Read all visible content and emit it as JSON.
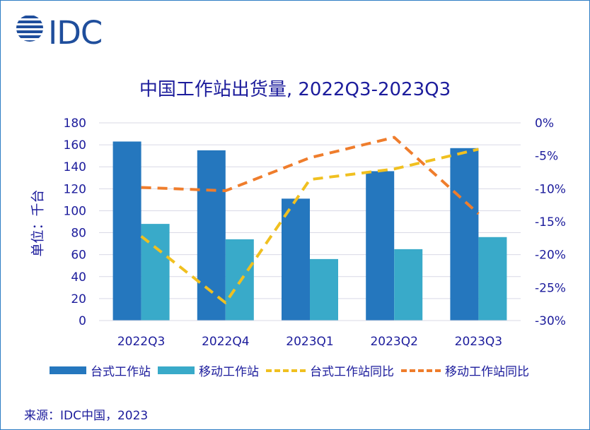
{
  "logo": {
    "text": "IDC",
    "color": "#1f4e9c"
  },
  "chart_data": {
    "type": "bar",
    "title": "中国工作站出货量, 2022Q3-2023Q3",
    "ylabel": "单位：千台",
    "categories": [
      "2022Q3",
      "2022Q4",
      "2023Q1",
      "2023Q2",
      "2023Q3"
    ],
    "ylim": [
      0,
      180
    ],
    "yticks": [
      "0",
      "20",
      "40",
      "60",
      "80",
      "100",
      "120",
      "140",
      "160",
      "180"
    ],
    "y2lim": [
      -30,
      0
    ],
    "y2ticks": [
      "0%",
      "-5%",
      "-10%",
      "-15%",
      "-20%",
      "-25%",
      "-30%"
    ],
    "series": [
      {
        "name": "台式工作站",
        "kind": "bar",
        "axis": "left",
        "color": "#2577be",
        "values": [
          163,
          155,
          111,
          136,
          157
        ]
      },
      {
        "name": "移动工作站",
        "kind": "bar",
        "axis": "left",
        "color": "#39aac9",
        "values": [
          88,
          74,
          56,
          65,
          76
        ]
      },
      {
        "name": "台式工作站同比",
        "kind": "line",
        "axis": "right",
        "color": "#f0c020",
        "values": [
          -17.2,
          -27.3,
          -8.6,
          -7.0,
          -4.0
        ]
      },
      {
        "name": "移动工作站同比",
        "kind": "line",
        "axis": "right",
        "color": "#ef7d2c",
        "values": [
          -9.8,
          -10.3,
          -5.3,
          -2.2,
          -13.8
        ]
      }
    ],
    "grid": true,
    "legend": "bottom"
  },
  "source": "来源：IDC中国，2023"
}
